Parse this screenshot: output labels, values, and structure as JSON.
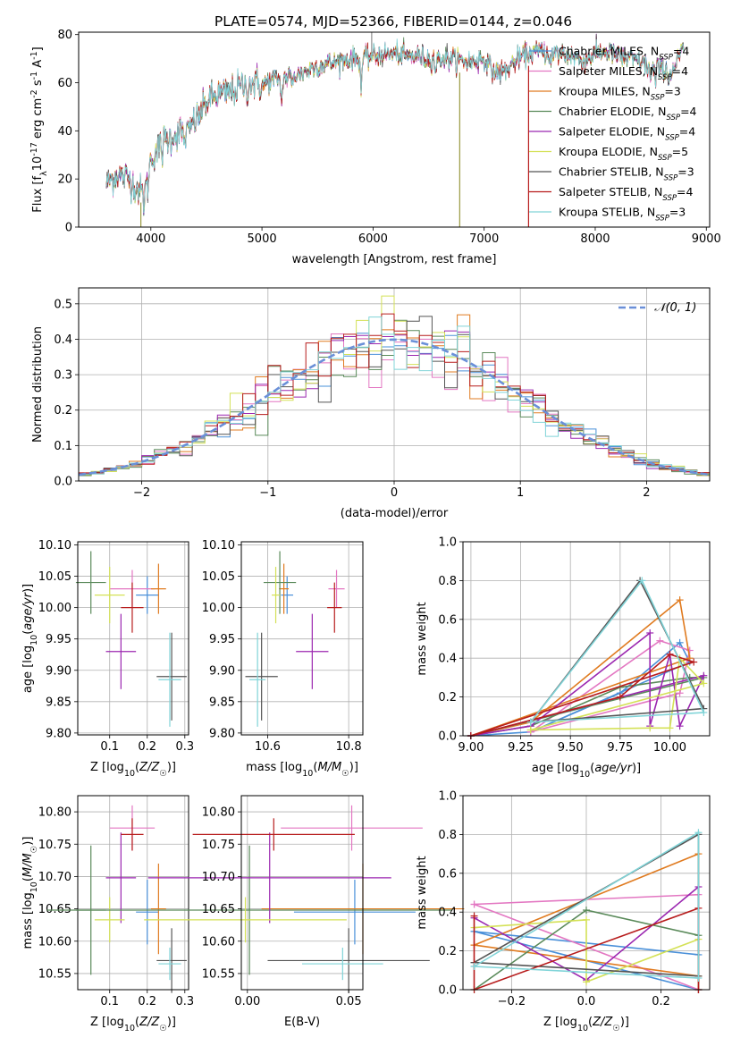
{
  "figure": {
    "title": "PLATE=0574, MJD=52366, FIBERID=0144, z=0.046"
  },
  "colors": {
    "Chabrier MILES": "#4a90d9",
    "Salpeter MILES": "#e377c2",
    "Kroupa MILES": "#e07b20",
    "Chabrier ELODIE": "#5a8a5a",
    "Salpeter ELODIE": "#9b27b0",
    "Kroupa ELODIE": "#d4e157",
    "Chabrier STELIB": "#555555",
    "Salpeter STELIB": "#b71c1c",
    "Kroupa STELIB": "#80d4d8",
    "normal_curve": "#6a8fd8"
  },
  "chart_data": [
    {
      "id": "spectrum",
      "type": "line",
      "xlabel": "wavelength [Angstrom, rest frame]",
      "ylabel_parts": [
        "Flux [f",
        "λ",
        "10",
        "-17",
        " erg cm",
        "-2",
        " s",
        "-1",
        " A",
        "-1",
        "]"
      ],
      "xlim": [
        3350,
        9030
      ],
      "ylim": [
        0,
        81
      ],
      "xticks": [
        4000,
        5000,
        6000,
        7000,
        8000,
        9000
      ],
      "yticks": [
        0,
        20,
        40,
        60,
        80
      ],
      "spectrum_trend": {
        "x": [
          3600,
          3700,
          3800,
          3900,
          3950,
          4000,
          4100,
          4200,
          4300,
          4400,
          4500,
          4600,
          4700,
          4800,
          4900,
          5000,
          5100,
          5200,
          5300,
          5400,
          5500,
          5600,
          5700,
          5800,
          5900,
          6000,
          6100,
          6200,
          6300,
          6400,
          6500,
          6600,
          6700,
          6800,
          6900,
          7000,
          7100,
          7200,
          7300,
          7400,
          7500,
          7600,
          7700,
          7800,
          7900,
          8000,
          8100,
          8200,
          8300,
          8400,
          8500,
          8600,
          8700,
          8800
        ],
        "y": [
          18,
          22,
          20,
          15,
          16,
          28,
          35,
          38,
          40,
          44,
          52,
          55,
          56,
          58,
          60,
          59,
          61,
          62,
          63,
          65,
          67,
          68,
          69,
          70,
          70,
          71,
          72,
          72,
          71,
          71,
          70,
          70,
          70,
          69,
          69,
          70,
          64,
          65,
          70,
          72,
          73,
          72,
          72,
          71,
          69,
          72,
          73,
          71,
          70,
          69,
          66,
          66,
          65,
          75
        ]
      },
      "spikes_x": [
        3910,
        6780,
        7400
      ],
      "legend_entries": [
        {
          "label": "Chabrier MILES, N",
          "sub": "SSP",
          "n": "=4"
        },
        {
          "label": "Salpeter MILES, N",
          "sub": "SSP",
          "n": "=4"
        },
        {
          "label": "Kroupa MILES, N",
          "sub": "SSP",
          "n": "=3"
        },
        {
          "label": "Chabrier ELODIE, N",
          "sub": "SSP",
          "n": "=4"
        },
        {
          "label": "Salpeter ELODIE, N",
          "sub": "SSP",
          "n": "=4"
        },
        {
          "label": "Kroupa ELODIE, N",
          "sub": "SSP",
          "n": "=5"
        },
        {
          "label": "Chabrier STELIB, N",
          "sub": "SSP",
          "n": "=3"
        },
        {
          "label": "Salpeter STELIB, N",
          "sub": "SSP",
          "n": "=4"
        },
        {
          "label": "Kroupa STELIB, N",
          "sub": "SSP",
          "n": "=3"
        }
      ],
      "legend_placement": "upper-right"
    },
    {
      "id": "residuals",
      "type": "histogram",
      "xlabel": "(data-model)/error",
      "ylabel": "Normed distribution",
      "xlim": [
        -2.5,
        2.5
      ],
      "ylim": [
        0,
        0.545
      ],
      "xticks": [
        -2,
        -1,
        0,
        1,
        2
      ],
      "yticks": [
        0.0,
        0.1,
        0.2,
        0.3,
        0.4,
        0.5
      ],
      "grid": true,
      "legend": "𝒩(0, 1)",
      "legend_placement": "upper-right",
      "bin_width": 0.1
    },
    {
      "id": "age_vs_Z",
      "type": "errorbar",
      "xlabel": "Z [log10(Z/Z☉)]",
      "ylabel": "age  [log10(age/yr)]",
      "xlim": [
        0.015,
        0.31
      ],
      "ylim": [
        9.797,
        10.105
      ],
      "xticks": [
        0.1,
        0.2,
        0.3
      ],
      "yticks": [
        9.8,
        9.85,
        9.9,
        9.95,
        10.0,
        10.05,
        10.1
      ],
      "grid": true
    },
    {
      "id": "age_vs_mass",
      "type": "errorbar",
      "xlabel": "mass [log10(M/M☉)]",
      "ylabel": "",
      "xlim": [
        10.535,
        10.835
      ],
      "ylim": [
        9.797,
        10.105
      ],
      "xticks": [
        10.6,
        10.8
      ],
      "yticks": [
        9.8,
        9.85,
        9.9,
        9.95,
        10.0,
        10.05,
        10.1
      ],
      "grid": true
    },
    {
      "id": "weight_vs_age",
      "type": "line",
      "xlabel": "age  [log10(age/yr)]",
      "ylabel": "mass weight",
      "xlim": [
        8.96,
        10.2
      ],
      "ylim": [
        0,
        1
      ],
      "xticks": [
        9.0,
        9.25,
        9.5,
        9.75,
        10.0
      ],
      "yticks": [
        0.0,
        0.2,
        0.4,
        0.6,
        0.8,
        1.0
      ],
      "grid": true
    },
    {
      "id": "mass_vs_Z",
      "type": "errorbar",
      "xlabel": "Z [log10(Z/Z☉)]",
      "ylabel": "mass [log10(M/M☉)]",
      "xlim": [
        0.015,
        0.31
      ],
      "ylim": [
        10.525,
        10.825
      ],
      "xticks": [
        0.1,
        0.2,
        0.3
      ],
      "yticks": [
        10.55,
        10.6,
        10.65,
        10.7,
        10.75,
        10.8
      ],
      "grid": true
    },
    {
      "id": "mass_vs_EBV",
      "type": "errorbar",
      "xlabel": "E(B-V)",
      "ylabel": "",
      "xlim": [
        -0.003,
        0.057
      ],
      "ylim": [
        10.525,
        10.825
      ],
      "xticks": [
        0.0,
        0.05
      ],
      "yticks": [
        10.55,
        10.6,
        10.65,
        10.7,
        10.75,
        10.8
      ],
      "grid": true
    },
    {
      "id": "weight_vs_Z",
      "type": "line",
      "xlabel": "Z [log10(Z/Z☉)]",
      "ylabel": "mass weight",
      "xlim": [
        -0.33,
        0.33
      ],
      "ylim": [
        0,
        1
      ],
      "xticks": [
        -0.2,
        0.0,
        0.2
      ],
      "yticks": [
        0.0,
        0.2,
        0.4,
        0.6,
        0.8,
        1.0
      ],
      "grid": true
    }
  ],
  "models": [
    {
      "name": "Chabrier MILES",
      "Z": [
        0.2,
        0.03
      ],
      "age": [
        10.02,
        0.03
      ],
      "mass": [
        10.645,
        0.05
      ],
      "mass_age": [
        10.648,
        0.015
      ],
      "ebv": [
        0.053,
        0.03
      ],
      "age_weight": [
        [
          9.0,
          0.0
        ],
        [
          9.3,
          0.02
        ],
        [
          9.75,
          0.22
        ],
        [
          10.05,
          0.48
        ],
        [
          10.1,
          0.38
        ],
        [
          9.3,
          0.02
        ]
      ],
      "z_weight": [
        [
          -0.3,
          0.3
        ],
        [
          0.3,
          0.18
        ],
        [
          0.3,
          0.0
        ],
        [
          -0.3,
          0.3
        ]
      ]
    },
    {
      "name": "Salpeter MILES",
      "Z": [
        0.16,
        0.06
      ],
      "age": [
        10.03,
        0.03
      ],
      "mass": [
        10.775,
        0.035
      ],
      "mass_age": [
        10.77,
        0.02
      ],
      "ebv": [
        0.0515,
        0.035
      ],
      "age_weight": [
        [
          9.3,
          0.02
        ],
        [
          9.95,
          0.49
        ],
        [
          10.1,
          0.44
        ],
        [
          10.05,
          0.22
        ],
        [
          9.3,
          0.02
        ]
      ],
      "z_weight": [
        [
          -0.3,
          0.44
        ],
        [
          0.3,
          0.49
        ],
        [
          0.3,
          0.0
        ],
        [
          -0.3,
          0.44
        ]
      ]
    },
    {
      "name": "Kroupa MILES",
      "Z": [
        0.23,
        0.02
      ],
      "age": [
        10.03,
        0.04
      ],
      "mass": [
        10.65,
        0.07
      ],
      "mass_age": [
        10.64,
        0.012
      ],
      "ebv": [
        0.057,
        0.05
      ],
      "age_weight": [
        [
          9.0,
          0.0
        ],
        [
          9.3,
          0.07
        ],
        [
          10.05,
          0.7
        ],
        [
          10.1,
          0.4
        ],
        [
          9.0,
          0.0
        ]
      ],
      "z_weight": [
        [
          -0.3,
          0.23
        ],
        [
          0.3,
          0.7
        ],
        [
          0.3,
          0.07
        ],
        [
          -0.3,
          0.23
        ]
      ]
    },
    {
      "name": "Chabrier ELODIE",
      "Z": [
        0.05,
        0.04
      ],
      "age": [
        10.04,
        0.05
      ],
      "mass": [
        10.648,
        0.1
      ],
      "mass_age": [
        10.63,
        0.04
      ],
      "ebv": [
        0.001,
        0.1
      ],
      "age_weight": [
        [
          9.0,
          0.0
        ],
        [
          9.3,
          0.05
        ],
        [
          9.75,
          0.25
        ],
        [
          10.1,
          0.3
        ],
        [
          10.17,
          0.3
        ],
        [
          9.0,
          0.0
        ]
      ],
      "z_weight": [
        [
          -0.3,
          0.0
        ],
        [
          0.0,
          0.41
        ],
        [
          0.3,
          0.28
        ],
        [
          0.3,
          0.0
        ]
      ]
    },
    {
      "name": "Salpeter ELODIE",
      "Z": [
        0.13,
        0.04
      ],
      "age": [
        9.93,
        0.06
      ],
      "mass": [
        10.698,
        0.07
      ],
      "mass_age": [
        10.71,
        0.04
      ],
      "ebv": [
        0.011,
        0.06
      ],
      "age_weight": [
        [
          9.0,
          0.0
        ],
        [
          9.3,
          0.05
        ],
        [
          9.9,
          0.53
        ],
        [
          9.9,
          0.05
        ],
        [
          10.0,
          0.42
        ],
        [
          10.05,
          0.05
        ],
        [
          10.17,
          0.31
        ],
        [
          9.0,
          0.0
        ]
      ],
      "z_weight": [
        [
          -0.3,
          0.37
        ],
        [
          0.0,
          0.05
        ],
        [
          0.3,
          0.53
        ],
        [
          0.3,
          0.0
        ]
      ]
    },
    {
      "name": "Kroupa ELODIE",
      "Z": [
        0.1,
        0.04
      ],
      "age": [
        10.02,
        0.045
      ],
      "mass": [
        10.633,
        0.035
      ],
      "mass_age": [
        10.62,
        0.01
      ],
      "ebv": [
        -0.001,
        0.05
      ],
      "age_weight": [
        [
          9.3,
          0.03
        ],
        [
          9.9,
          0.04
        ],
        [
          10.0,
          0.04
        ],
        [
          10.05,
          0.4
        ],
        [
          10.17,
          0.27
        ],
        [
          9.3,
          0.03
        ]
      ],
      "z_weight": [
        [
          -0.3,
          0.32
        ],
        [
          0.0,
          0.36
        ],
        [
          0.0,
          0.04
        ],
        [
          0.3,
          0.26
        ],
        [
          0.3,
          0.0
        ]
      ]
    },
    {
      "name": "Chabrier STELIB",
      "Z": [
        0.265,
        0.04
      ],
      "age": [
        9.89,
        0.07
      ],
      "mass": [
        10.57,
        0.05
      ],
      "mass_age": [
        10.585,
        0.04
      ],
      "ebv": [
        0.05,
        0.04
      ],
      "age_weight": [
        [
          9.3,
          0.07
        ],
        [
          9.85,
          0.8
        ],
        [
          10.17,
          0.14
        ],
        [
          9.3,
          0.07
        ]
      ],
      "z_weight": [
        [
          -0.3,
          0.14
        ],
        [
          0.3,
          0.8
        ],
        [
          0.3,
          0.07
        ],
        [
          -0.3,
          0.14
        ]
      ]
    },
    {
      "name": "Salpeter STELIB",
      "Z": [
        0.16,
        0.03
      ],
      "age": [
        10.0,
        0.04
      ],
      "mass": [
        10.765,
        0.025
      ],
      "mass_age": [
        10.765,
        0.018
      ],
      "ebv": [
        0.013,
        0.04
      ],
      "age_weight": [
        [
          9.0,
          0.0
        ],
        [
          9.75,
          0.2
        ],
        [
          10.0,
          0.42
        ],
        [
          10.12,
          0.38
        ],
        [
          9.0,
          0.0
        ]
      ],
      "z_weight": [
        [
          -0.3,
          0.38
        ],
        [
          -0.3,
          0.0
        ],
        [
          0.3,
          0.42
        ],
        [
          0.3,
          0.0
        ]
      ]
    },
    {
      "name": "Kroupa STELIB",
      "Z": [
        0.26,
        0.03
      ],
      "age": [
        9.885,
        0.075
      ],
      "mass": [
        10.565,
        0.025
      ],
      "mass_age": [
        10.575,
        0.02
      ],
      "ebv": [
        0.047,
        0.02
      ],
      "age_weight": [
        [
          9.3,
          0.07
        ],
        [
          9.86,
          0.8
        ],
        [
          10.17,
          0.12
        ],
        [
          9.3,
          0.07
        ]
      ],
      "z_weight": [
        [
          -0.3,
          0.12
        ],
        [
          0.3,
          0.81
        ],
        [
          0.3,
          0.06
        ],
        [
          -0.3,
          0.12
        ]
      ]
    }
  ]
}
